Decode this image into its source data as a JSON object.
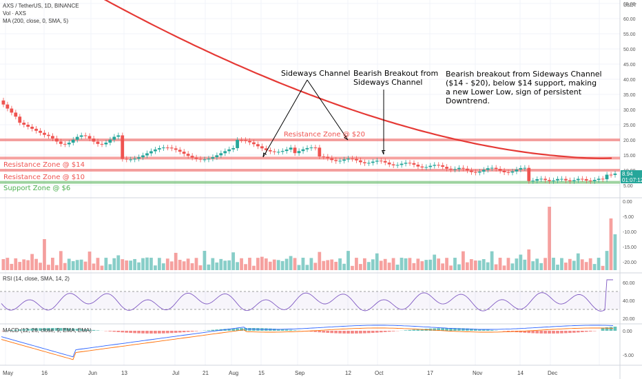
{
  "header": {
    "symbol_line": "AXS / TetherUS, 1D, BINANCE",
    "vol_line": "Vol · AXS",
    "ma_line": "MA (200, close, 0, SMA, 5)"
  },
  "price_axis": {
    "unit": "USDT",
    "ticks": [
      "65.00",
      "60.00",
      "55.00",
      "50.00",
      "45.00",
      "40.00",
      "35.00",
      "30.00",
      "25.00",
      "20.00",
      "15.00",
      "10.00",
      "5.00"
    ],
    "last_price": "8.94",
    "last_time": "01:07:12",
    "last_price_color": "#26a69a"
  },
  "volume_axis": {
    "ticks": [
      "0.00",
      "-5.00",
      "-10.00",
      "-15.00",
      "-20.00"
    ]
  },
  "rsi": {
    "label": "RSI (14, close, SMA, 14, 2)",
    "ticks": [
      "60.00",
      "40.00",
      "20.00"
    ]
  },
  "macd": {
    "label": "MACD (12, 26, close, 9, EMA, EMA)",
    "ticks": [
      "0.00",
      "-5.00"
    ]
  },
  "time_axis": {
    "labels": [
      "May",
      "16",
      "Jun",
      "13",
      "Jul",
      "21",
      "Aug",
      "15",
      "Sep",
      "12",
      "Oct",
      "17",
      "Nov",
      "14",
      "Dec"
    ]
  },
  "zones": [
    {
      "label": "Resistance Zone @ $20",
      "value": 20,
      "color": "#ef5350"
    },
    {
      "label": "Resistance Zone @ $14",
      "value": 14,
      "color": "#ef5350"
    },
    {
      "label": "Resistance Zone @ $10",
      "value": 10,
      "color": "#ef5350"
    },
    {
      "label": "Support Zone @ $6",
      "value": 6,
      "color": "#4caf50"
    }
  ],
  "annotations": {
    "sideways": "Sideways Channel",
    "breakout_1": "Bearish Breakout from",
    "breakout_2": "Sideways Channel",
    "note_1": "Bearish breakout from Sideways Channel",
    "note_2": "($14 - $20), below $14 support, making",
    "note_3": "a new Lower Low, sign of persistent",
    "note_4": "Downtrend."
  },
  "colors": {
    "up": "#26a69a",
    "down": "#ef5350",
    "ma": "#e53935",
    "rsi_line": "#7e57c2",
    "macd_line": "#2962ff",
    "signal_line": "#ff6d00"
  }
}
